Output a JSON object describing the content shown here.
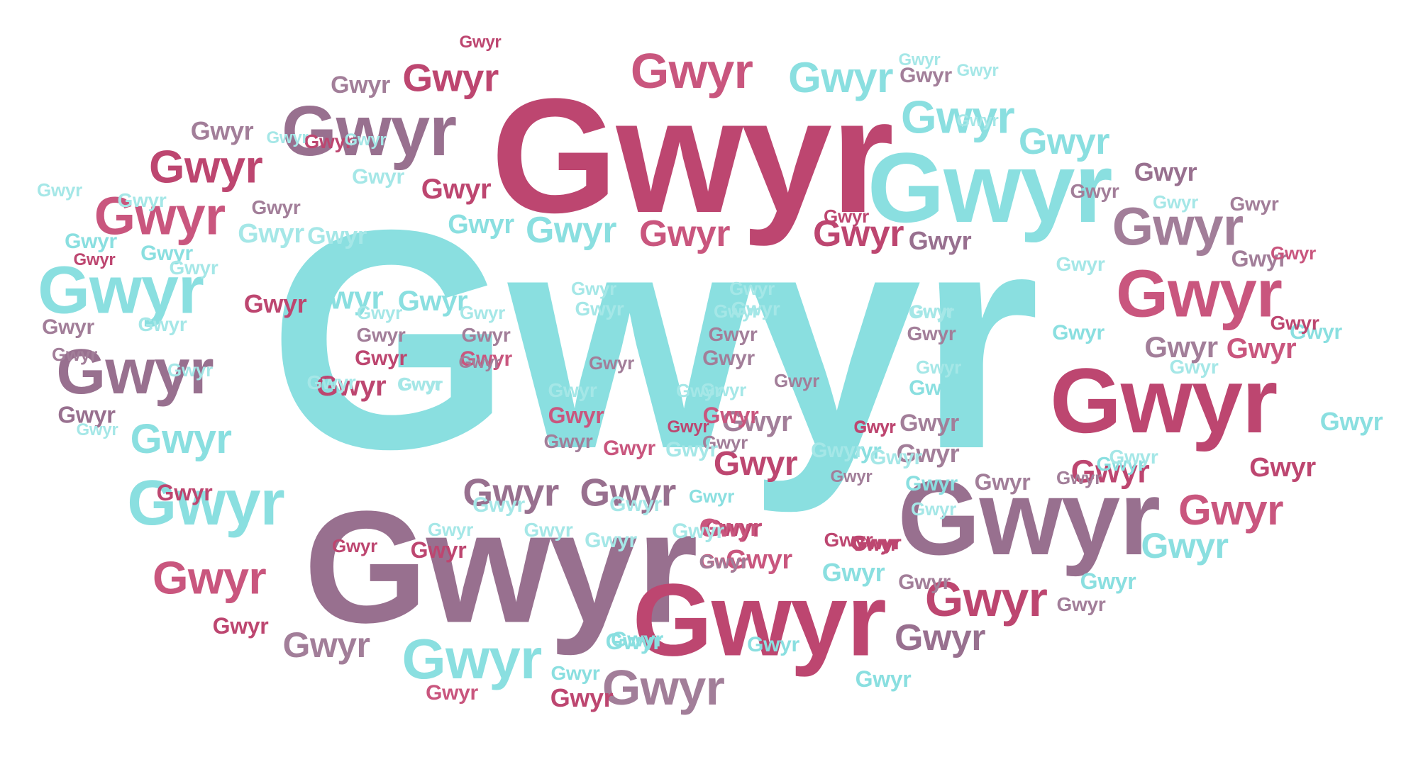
{
  "word": "Gwyr",
  "colors": {
    "teal": "#8adfe0",
    "light_teal": "#a5e7e7",
    "crimson": "#bd4670",
    "rose": "#c9567e",
    "mauve": "#98708f",
    "light_mauve": "#a27e99",
    "background": "#ffffff"
  }
}
